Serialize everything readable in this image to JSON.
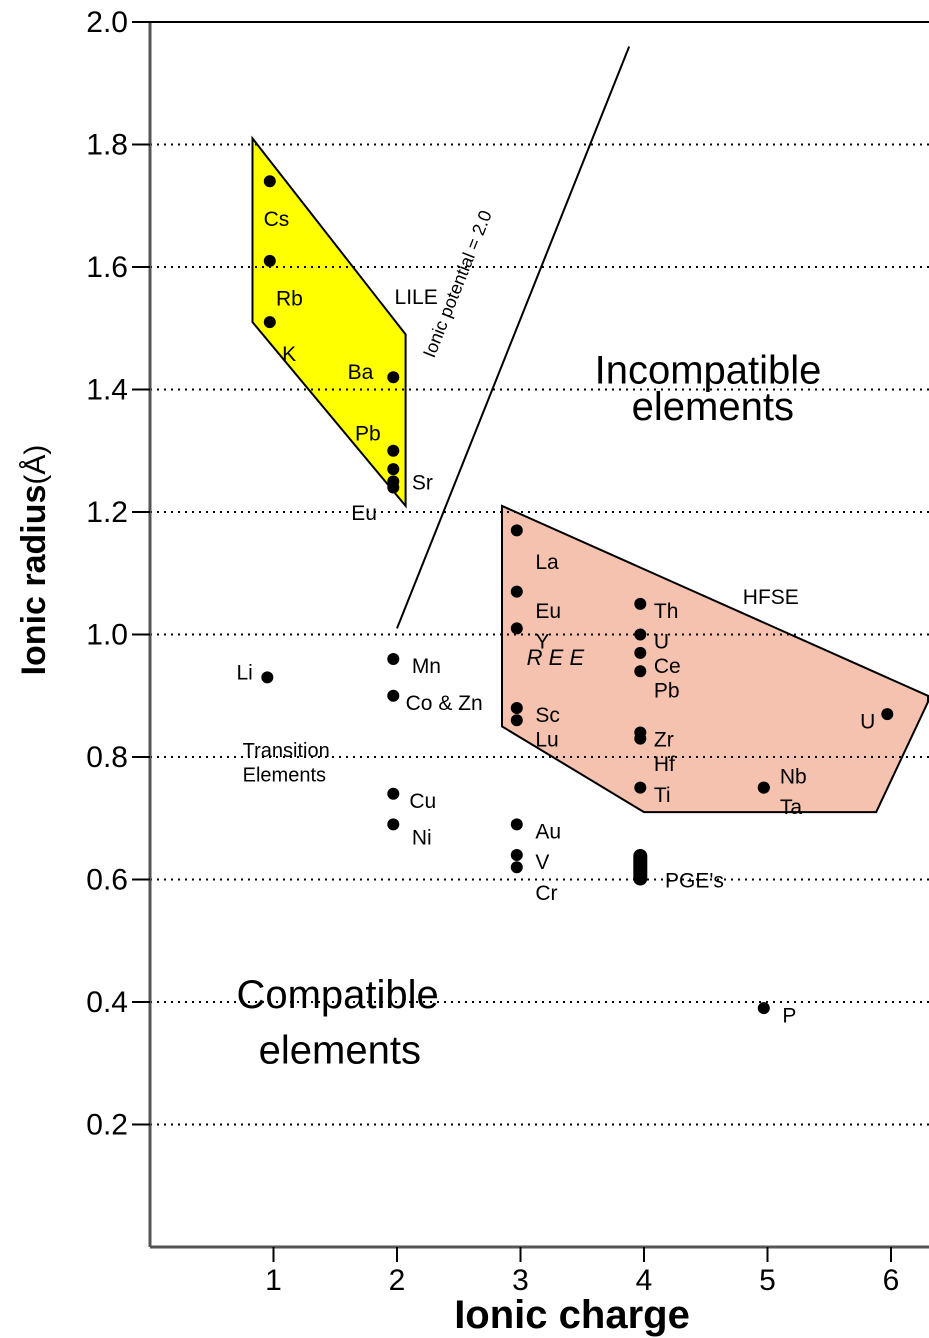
{
  "chart_data": {
    "type": "scatter",
    "xlabel": "Ionic charge",
    "ylabel_main": "Ionic radius",
    "ylabel_unit": "(Å)",
    "xlim": [
      0,
      6.3
    ],
    "ylim": [
      0,
      2.0
    ],
    "x_ticks": [
      1,
      2,
      3,
      4,
      5,
      6
    ],
    "y_ticks": [
      0.2,
      0.4,
      0.6,
      0.8,
      1.0,
      1.2,
      1.4,
      1.6,
      1.8,
      2.0
    ],
    "x_tick_labels": [
      "1",
      "2",
      "3",
      "4",
      "5",
      "6"
    ],
    "y_tick_labels": [
      "0.2",
      "0.4",
      "0.6",
      "0.8",
      "1.0",
      "1.2",
      "1.4",
      "1.6",
      "1.8",
      "2.0"
    ],
    "grid": "dotted horizontal",
    "points": [
      {
        "label": "Cs",
        "x": 0.97,
        "y": 1.74,
        "lx": 0.92,
        "ly": 1.68
      },
      {
        "label": "Rb",
        "x": 0.97,
        "y": 1.61,
        "lx": 1.02,
        "ly": 1.55
      },
      {
        "label": "K",
        "x": 0.97,
        "y": 1.51,
        "lx": 1.07,
        "ly": 1.46
      },
      {
        "label": "Ba",
        "x": 1.97,
        "y": 1.42,
        "lx": 1.6,
        "ly": 1.43
      },
      {
        "label": "Pb",
        "x": 1.97,
        "y": 1.3,
        "lx": 1.66,
        "ly": 1.33
      },
      {
        "label": "Sr",
        "x": 1.97,
        "y": 1.27,
        "lx": 2.12,
        "ly": 1.25
      },
      {
        "label": "Eu",
        "x": 1.97,
        "y": 1.25,
        "lx": 1.63,
        "ly": 1.2
      },
      {
        "label": "",
        "x": 1.97,
        "y": 1.24,
        "lx": 0,
        "ly": 0
      },
      {
        "label": "Li",
        "x": 0.95,
        "y": 0.93,
        "lx": 0.7,
        "ly": 0.94
      },
      {
        "label": "Mn",
        "x": 1.97,
        "y": 0.96,
        "lx": 2.12,
        "ly": 0.95
      },
      {
        "label": "Co & Zn",
        "x": 1.97,
        "y": 0.9,
        "lx": 2.07,
        "ly": 0.89
      },
      {
        "label": "Cu",
        "x": 1.97,
        "y": 0.74,
        "lx": 2.1,
        "ly": 0.73
      },
      {
        "label": "Ni",
        "x": 1.97,
        "y": 0.69,
        "lx": 2.12,
        "ly": 0.67
      },
      {
        "label": "La",
        "x": 2.97,
        "y": 1.17,
        "lx": 3.12,
        "ly": 1.12
      },
      {
        "label": "Eu",
        "x": 2.97,
        "y": 1.07,
        "lx": 3.12,
        "ly": 1.04
      },
      {
        "label": "Y",
        "x": 2.97,
        "y": 1.01,
        "lx": 3.12,
        "ly": 0.99
      },
      {
        "label": "Sc",
        "x": 2.97,
        "y": 0.88,
        "lx": 3.12,
        "ly": 0.87
      },
      {
        "label": "Lu",
        "x": 2.97,
        "y": 0.86,
        "lx": 3.12,
        "ly": 0.83
      },
      {
        "label": "Au",
        "x": 2.97,
        "y": 0.69,
        "lx": 3.12,
        "ly": 0.68
      },
      {
        "label": "V",
        "x": 2.97,
        "y": 0.64,
        "lx": 3.12,
        "ly": 0.63
      },
      {
        "label": "Cr",
        "x": 2.97,
        "y": 0.62,
        "lx": 3.12,
        "ly": 0.58
      },
      {
        "label": "Th",
        "x": 3.97,
        "y": 1.05,
        "lx": 4.08,
        "ly": 1.04
      },
      {
        "label": "U",
        "x": 3.97,
        "y": 1.0,
        "lx": 4.08,
        "ly": 0.99
      },
      {
        "label": "Ce",
        "x": 3.97,
        "y": 0.97,
        "lx": 4.08,
        "ly": 0.95
      },
      {
        "label": "Pb",
        "x": 3.97,
        "y": 0.94,
        "lx": 4.08,
        "ly": 0.91
      },
      {
        "label": "Zr",
        "x": 3.97,
        "y": 0.84,
        "lx": 4.08,
        "ly": 0.83
      },
      {
        "label": "Hf",
        "x": 3.97,
        "y": 0.83,
        "lx": 4.08,
        "ly": 0.79
      },
      {
        "label": "Ti",
        "x": 3.97,
        "y": 0.75,
        "lx": 4.08,
        "ly": 0.74
      },
      {
        "label": "PGE's",
        "x": 3.97,
        "y": 0.62,
        "lx": 4.17,
        "ly": 0.6
      },
      {
        "label": "U",
        "x": 5.97,
        "y": 0.87,
        "lx": 5.75,
        "ly": 0.86
      },
      {
        "label": "Nb",
        "x": 4.97,
        "y": 0.75,
        "lx": 5.1,
        "ly": 0.77
      },
      {
        "label": "Ta",
        "x": 4.97,
        "y": 0.75,
        "lx": 5.1,
        "ly": 0.72
      },
      {
        "label": "P",
        "x": 4.97,
        "y": 0.39,
        "lx": 5.12,
        "ly": 0.38
      }
    ],
    "pge_cluster": {
      "x": 3.97,
      "y_min": 0.6,
      "y_max": 0.64
    },
    "regions": [
      {
        "name": "LILE",
        "color": "#ffff00",
        "label_pos": [
          1.98,
          1.54
        ],
        "polygon": [
          [
            0.83,
            1.81
          ],
          [
            2.07,
            1.49
          ],
          [
            2.07,
            1.21
          ],
          [
            0.83,
            1.51
          ]
        ]
      },
      {
        "name": "HFSE",
        "color": "#f5c2b0",
        "label_pos": [
          4.8,
          1.05
        ],
        "polygon": [
          [
            2.85,
            1.21
          ],
          [
            6.3,
            0.9
          ],
          [
            6.3,
            0.89
          ],
          [
            5.88,
            0.71
          ],
          [
            4.0,
            0.71
          ],
          [
            2.85,
            0.85
          ]
        ]
      }
    ],
    "line": {
      "label": "Ionic potential = 2.0",
      "x": [
        2.0,
        3.88
      ],
      "y": [
        1.01,
        1.96
      ]
    },
    "annotations": [
      {
        "text": "Incompatible",
        "x": 3.6,
        "y": 1.41,
        "cls": "big"
      },
      {
        "text": "elements",
        "x": 3.9,
        "y": 1.35,
        "cls": "big"
      },
      {
        "text": "Compatible",
        "x": 0.7,
        "y": 0.39,
        "cls": "big"
      },
      {
        "text": "elements",
        "x": 0.88,
        "y": 0.3,
        "cls": "big"
      },
      {
        "text": "Transition",
        "x": 0.75,
        "y": 0.8,
        "cls": "small"
      },
      {
        "text": "Elements",
        "x": 0.75,
        "y": 0.76,
        "cls": "small"
      },
      {
        "text": "R E E",
        "x": 3.05,
        "y": 0.95,
        "cls": "ree"
      }
    ]
  }
}
